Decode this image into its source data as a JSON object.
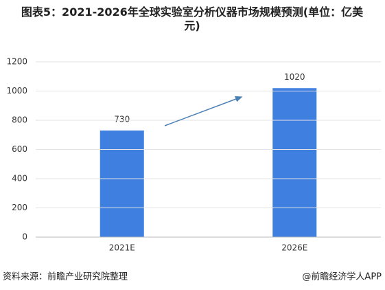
{
  "chart_data": {
    "type": "bar",
    "title": "图表5：2021-2026年全球实验室分析仪器市场规模预测(单位：亿美元)",
    "categories": [
      "2021E",
      "2026E"
    ],
    "values": [
      730,
      1020
    ],
    "color": "#3f7fe0",
    "ylim": [
      0,
      1200
    ],
    "yticks": [
      0,
      200,
      400,
      600,
      800,
      1000,
      1200
    ],
    "grid": true,
    "source": "资料来源：前瞻产业研究院整理",
    "credit": "@前瞻经济学人APP"
  }
}
